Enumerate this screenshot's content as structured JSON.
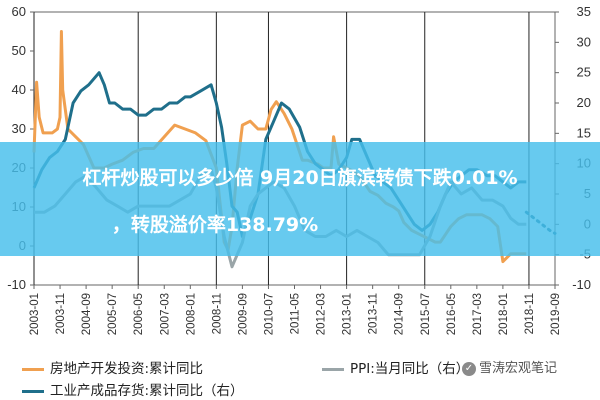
{
  "chart_data": {
    "type": "line",
    "categories": [
      "2003-01",
      "2003-11",
      "2004-09",
      "2005-07",
      "2006-05",
      "2007-03",
      "2008-01",
      "2008-11",
      "2009-09",
      "2010-07",
      "2011-05",
      "2012-03",
      "2013-01",
      "2013-11",
      "2014-09",
      "2015-07",
      "2016-05",
      "2017-03",
      "2018-01",
      "2018-11",
      "2019-09"
    ],
    "left_axis": {
      "ticks": [
        -10,
        0,
        10,
        20,
        30,
        40,
        50,
        60
      ],
      "ylim": [
        -10,
        60
      ]
    },
    "right_axis": {
      "ticks": [
        -10,
        -5,
        0,
        5,
        10,
        15,
        20,
        25,
        30,
        35
      ],
      "ylim": [
        -10,
        35
      ]
    },
    "series": [
      {
        "name": "房地产开发投资:累计同比",
        "axis": "left",
        "color": "#f0a050",
        "points": [
          [
            0,
            24
          ],
          [
            0.1,
            42
          ],
          [
            0.2,
            33
          ],
          [
            0.35,
            29
          ],
          [
            0.7,
            29
          ],
          [
            0.9,
            30
          ],
          [
            1.0,
            33
          ],
          [
            1.05,
            55
          ],
          [
            1.1,
            40
          ],
          [
            1.3,
            30
          ],
          [
            1.6,
            28
          ],
          [
            1.9,
            26
          ],
          [
            2.3,
            20
          ],
          [
            2.7,
            20
          ],
          [
            3.0,
            21
          ],
          [
            3.4,
            22
          ],
          [
            3.8,
            24
          ],
          [
            4.2,
            25
          ],
          [
            4.6,
            25
          ],
          [
            5.0,
            28
          ],
          [
            5.4,
            31
          ],
          [
            5.8,
            30
          ],
          [
            6.2,
            29
          ],
          [
            6.6,
            27
          ],
          [
            7.0,
            20
          ],
          [
            7.3,
            1
          ],
          [
            7.45,
            -1
          ],
          [
            7.6,
            5
          ],
          [
            7.8,
            20
          ],
          [
            8.0,
            31
          ],
          [
            8.3,
            32
          ],
          [
            8.6,
            30
          ],
          [
            8.9,
            30
          ],
          [
            9.1,
            35
          ],
          [
            9.3,
            37
          ],
          [
            9.6,
            34
          ],
          [
            9.9,
            30
          ],
          [
            10.3,
            22
          ],
          [
            10.5,
            22
          ],
          [
            10.9,
            21
          ],
          [
            11.1,
            20
          ],
          [
            11.4,
            20
          ],
          [
            11.5,
            28
          ],
          [
            11.7,
            21
          ],
          [
            12.0,
            20
          ],
          [
            12.3,
            19
          ],
          [
            12.6,
            17
          ],
          [
            12.9,
            14
          ],
          [
            13.2,
            13
          ],
          [
            13.5,
            11
          ],
          [
            13.8,
            10
          ],
          [
            14.0,
            9
          ],
          [
            14.2,
            6
          ],
          [
            14.5,
            4
          ],
          [
            14.8,
            3
          ],
          [
            15.1,
            2
          ],
          [
            15.4,
            1
          ],
          [
            15.6,
            1
          ],
          [
            15.8,
            3
          ],
          [
            16.0,
            5
          ],
          [
            16.3,
            7
          ],
          [
            16.6,
            8
          ],
          [
            16.9,
            8
          ],
          [
            17.2,
            8
          ],
          [
            17.5,
            7
          ],
          [
            17.8,
            5
          ],
          [
            18.0,
            -4
          ],
          [
            18.3,
            -2
          ],
          [
            18.6,
            -2
          ],
          [
            18.9,
            -2
          ]
        ]
      },
      {
        "name": "工业产成品存货:累计同比（右）",
        "axis": "right",
        "color": "#1f6f8b",
        "points": [
          [
            0,
            6
          ],
          [
            0.3,
            9
          ],
          [
            0.6,
            11
          ],
          [
            0.9,
            12
          ],
          [
            1.2,
            14
          ],
          [
            1.5,
            20
          ],
          [
            1.8,
            22
          ],
          [
            2.1,
            23
          ],
          [
            2.5,
            25
          ],
          [
            2.7,
            23
          ],
          [
            2.9,
            20
          ],
          [
            3.1,
            20
          ],
          [
            3.4,
            19
          ],
          [
            3.7,
            19
          ],
          [
            4.0,
            18
          ],
          [
            4.3,
            18
          ],
          [
            4.6,
            19
          ],
          [
            4.9,
            19
          ],
          [
            5.2,
            20
          ],
          [
            5.5,
            20
          ],
          [
            5.8,
            21
          ],
          [
            6.0,
            21
          ],
          [
            6.4,
            22
          ],
          [
            6.8,
            23
          ],
          [
            7.0,
            20
          ],
          [
            7.2,
            16
          ],
          [
            7.4,
            10
          ],
          [
            7.6,
            3
          ],
          [
            7.8,
            2
          ],
          [
            8.0,
            -2
          ],
          [
            8.3,
            1
          ],
          [
            8.6,
            5
          ],
          [
            8.9,
            14
          ],
          [
            9.2,
            17
          ],
          [
            9.5,
            20
          ],
          [
            9.8,
            19
          ],
          [
            10.2,
            16
          ],
          [
            10.5,
            12
          ],
          [
            10.8,
            10
          ],
          [
            11.1,
            9
          ],
          [
            11.4,
            8
          ],
          [
            11.7,
            9
          ],
          [
            12.0,
            11
          ],
          [
            12.2,
            14
          ],
          [
            12.5,
            14
          ],
          [
            12.8,
            11
          ],
          [
            13.1,
            8
          ],
          [
            13.4,
            7
          ],
          [
            13.7,
            6
          ],
          [
            14.0,
            4
          ],
          [
            14.3,
            2
          ],
          [
            14.6,
            0
          ],
          [
            14.9,
            -1
          ],
          [
            15.2,
            0
          ],
          [
            15.5,
            2
          ],
          [
            15.8,
            5
          ],
          [
            16.1,
            7
          ],
          [
            16.4,
            8
          ],
          [
            16.7,
            9
          ],
          [
            17.0,
            9
          ],
          [
            17.4,
            8
          ],
          [
            17.7,
            8
          ],
          [
            18.0,
            7
          ],
          [
            18.3,
            6
          ],
          [
            18.6,
            7
          ],
          [
            18.9,
            7
          ]
        ]
      },
      {
        "name": "PPI:当月同比（右）",
        "axis": "right",
        "color": "#9aa5a8",
        "points": [
          [
            0,
            2
          ],
          [
            0.4,
            2
          ],
          [
            0.8,
            3
          ],
          [
            1.2,
            5
          ],
          [
            1.6,
            7
          ],
          [
            2.0,
            8
          ],
          [
            2.4,
            6
          ],
          [
            2.8,
            4
          ],
          [
            3.2,
            3
          ],
          [
            3.6,
            2
          ],
          [
            4.0,
            3
          ],
          [
            4.4,
            3
          ],
          [
            4.8,
            3
          ],
          [
            5.2,
            3
          ],
          [
            5.6,
            4
          ],
          [
            6.0,
            5
          ],
          [
            6.4,
            8
          ],
          [
            6.8,
            9
          ],
          [
            7.0,
            6
          ],
          [
            7.3,
            -2
          ],
          [
            7.6,
            -7
          ],
          [
            8.0,
            -3
          ],
          [
            8.3,
            3
          ],
          [
            8.6,
            5
          ],
          [
            8.9,
            6
          ],
          [
            9.2,
            7
          ],
          [
            9.6,
            6
          ],
          [
            10.0,
            3
          ],
          [
            10.4,
            -1
          ],
          [
            10.8,
            -2
          ],
          [
            11.2,
            -2
          ],
          [
            11.6,
            -1
          ],
          [
            12.0,
            -2
          ],
          [
            12.4,
            -1
          ],
          [
            12.8,
            -2
          ],
          [
            13.2,
            -3
          ],
          [
            13.6,
            -5
          ],
          [
            14.0,
            -5
          ],
          [
            14.4,
            -5
          ],
          [
            14.8,
            -5
          ],
          [
            15.2,
            -2
          ],
          [
            15.6,
            3
          ],
          [
            16.0,
            7
          ],
          [
            16.4,
            5
          ],
          [
            16.8,
            6
          ],
          [
            17.2,
            4
          ],
          [
            17.6,
            4
          ],
          [
            18.0,
            3
          ],
          [
            18.3,
            1
          ],
          [
            18.6,
            0
          ],
          [
            18.9,
            0
          ]
        ]
      }
    ],
    "projected_segment": {
      "axis": "right",
      "color": "#1f6f8b",
      "style": "dotted",
      "points": [
        [
          18.9,
          2
        ],
        [
          19.2,
          1
        ],
        [
          19.5,
          0
        ],
        [
          19.8,
          -1
        ],
        [
          20.0,
          -1.5
        ]
      ]
    },
    "vertical_marker_indices": [
      0,
      4,
      7,
      9,
      12,
      15,
      19
    ]
  },
  "banner": {
    "line1": "杠杆炒股可以多少倍 9月20日旗滨转债下跌0.01%",
    "line2": "，转股溢价率138.79%"
  },
  "legend": {
    "item1": "房地产开发投资:累计同比",
    "item2": "PPI:当月同比（右）",
    "item3": "工业产成品存货:累计同比（右）"
  },
  "watermark": "雪涛宏观笔记"
}
